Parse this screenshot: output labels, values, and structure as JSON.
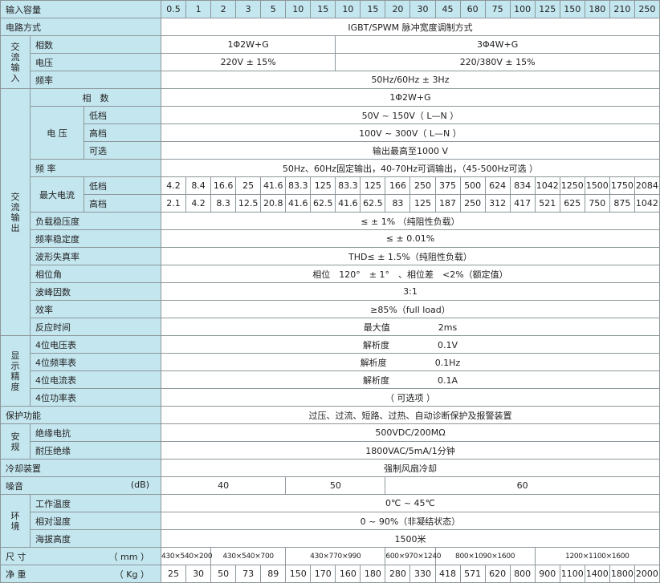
{
  "header": {
    "label": "输入容量",
    "capacities": [
      "0.5",
      "1",
      "2",
      "3",
      "5",
      "10",
      "15",
      "10",
      "15",
      "20",
      "30",
      "45",
      "60",
      "75",
      "100",
      "125",
      "150",
      "180",
      "210",
      "250"
    ]
  },
  "circuit": {
    "label": "电路方式",
    "value": "IGBT/SPWM 脉冲宽度调制方式"
  },
  "ac_input": {
    "group": "交流输入",
    "phase": {
      "label": "相数",
      "single": "1Φ2W+G",
      "three": "3Φ4W+G"
    },
    "voltage": {
      "label": "电压",
      "single": "220V ± 15%",
      "three": "220/380V ± 15%"
    },
    "frequency": {
      "label": "频率",
      "value": "50Hz/60Hz ± 3Hz"
    }
  },
  "ac_output": {
    "group": "交流输出",
    "phase": {
      "label": "相　数",
      "value": "1Φ2W+G"
    },
    "voltage": {
      "label": "电 压",
      "low": {
        "label": "低档",
        "value": "50V ~ 150V（ L—N ）"
      },
      "high": {
        "label": "高档",
        "value": "100V ~ 300V（ L—N ）"
      },
      "optional": {
        "label": "可选",
        "value": "输出最高至1000 V"
      }
    },
    "frequency": {
      "label": "频 率",
      "value": "50Hz、60Hz固定输出，40-70Hz可调输出，（45-500Hz可选 ）"
    },
    "max_current": {
      "label": "最大电流",
      "low": {
        "label": "低档",
        "values": [
          "4.2",
          "8.4",
          "16.6",
          "25",
          "41.6",
          "83.3",
          "125",
          "83.3",
          "125",
          "166",
          "250",
          "375",
          "500",
          "624",
          "834",
          "1042",
          "1250",
          "1500",
          "1750",
          "2084"
        ]
      },
      "high": {
        "label": "高档",
        "values": [
          "2.1",
          "4.2",
          "8.3",
          "12.5",
          "20.8",
          "41.6",
          "62.5",
          "41.6",
          "62.5",
          "83",
          "125",
          "187",
          "250",
          "312",
          "417",
          "521",
          "625",
          "750",
          "875",
          "1042"
        ]
      }
    },
    "load_regulation": {
      "label": "负载稳压度",
      "value": "≤ ± 1% （纯阻性负载）"
    },
    "frequency_stability": {
      "label": "频率稳定度",
      "value": "≤ ± 0.01%"
    },
    "thd": {
      "label": "波形失真率",
      "value": "THD≤ ± 1.5%（纯阻性负载）"
    },
    "phase_angle": {
      "label": "相位角",
      "value": "相位　120°　± 1°　、相位差　<2%（额定值）"
    },
    "crest_factor": {
      "label": "波峰因数",
      "value": "3:1"
    },
    "efficiency": {
      "label": "效率",
      "value": "≥85%（full load）"
    },
    "response_time": {
      "label": "反应时间",
      "key": "最大值",
      "value": "2ms"
    }
  },
  "display": {
    "group": "显示精度",
    "voltmeter": {
      "label": "4位电压表",
      "key": "解析度",
      "value": "0.1V"
    },
    "frequency_meter": {
      "label": "4位频率表",
      "key": "解析度",
      "value": "0.1Hz"
    },
    "ammeter": {
      "label": "4位电流表",
      "key": "解析度",
      "value": "0.1A"
    },
    "power_meter": {
      "label": "4位功率表",
      "value": "（ 可选项 ）"
    }
  },
  "protection": {
    "label": "保护功能",
    "value": "过压、过流、短路、过热、自动诊断保护及报警装置"
  },
  "safety": {
    "group": "安规",
    "insulation": {
      "label": "绝缘电抗",
      "value": "500VDC/200MΩ"
    },
    "withstand": {
      "label": "耐压绝缘",
      "value": "1800VAC/5mA/1分钟"
    }
  },
  "cooling": {
    "label": "冷却装置",
    "value": "强制风扇冷却"
  },
  "noise": {
    "label": "噪音",
    "unit": "(dB)",
    "values": [
      "40",
      "50",
      "60"
    ]
  },
  "environment": {
    "group": "环境",
    "temperature": {
      "label": "工作温度",
      "value": "0℃ ~ 45℃"
    },
    "humidity": {
      "label": "相对湿度",
      "value": "0 ~ 90%（非凝结状态）"
    },
    "altitude": {
      "label": "海拔高度",
      "value": "1500米"
    }
  },
  "size": {
    "label": "尺 寸",
    "unit": "（ mm ）",
    "values": [
      "430×540×200",
      "430×540×700",
      "430×770×990",
      "600×970×1240",
      "800×1090×1600",
      "1200×1100×1600"
    ]
  },
  "weight": {
    "label": "净 重",
    "unit": "（ Kg ）",
    "values": [
      "25",
      "30",
      "50",
      "73",
      "89",
      "150",
      "170",
      "160",
      "180",
      "280",
      "330",
      "418",
      "571",
      "620",
      "800",
      "900",
      "1100",
      "1400",
      "1800",
      "2000"
    ]
  },
  "colors": {
    "label_background": "#c4e6ef",
    "border": "#8c979b"
  }
}
